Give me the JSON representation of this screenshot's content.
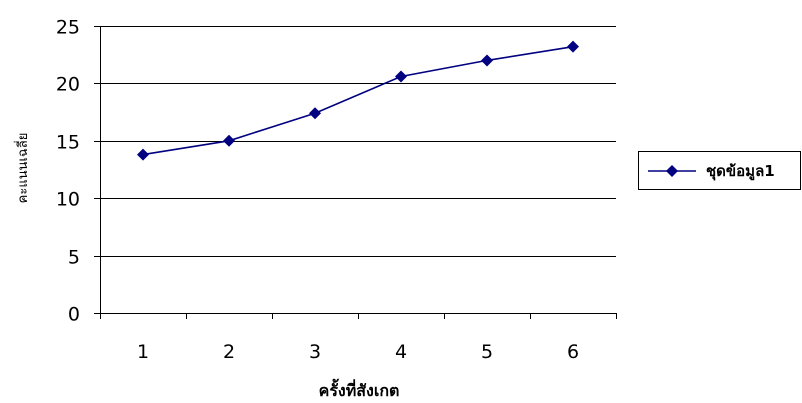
{
  "chart_data": {
    "type": "line",
    "title": "",
    "xlabel": "ครั้งที่สังเกต",
    "ylabel": "คะแนนเฉลี่ย",
    "categories": [
      "1",
      "2",
      "3",
      "4",
      "5",
      "6"
    ],
    "series": [
      {
        "name": "ชุดข้อมูล1",
        "values": [
          13.8,
          15.0,
          17.4,
          20.6,
          22.0,
          23.2
        ],
        "color": "#000080",
        "marker": "diamond"
      }
    ],
    "ylim": [
      0,
      25
    ],
    "yticks": [
      "0",
      "5",
      "10",
      "15",
      "20",
      "25"
    ],
    "grid": true,
    "legend_position": "right"
  }
}
